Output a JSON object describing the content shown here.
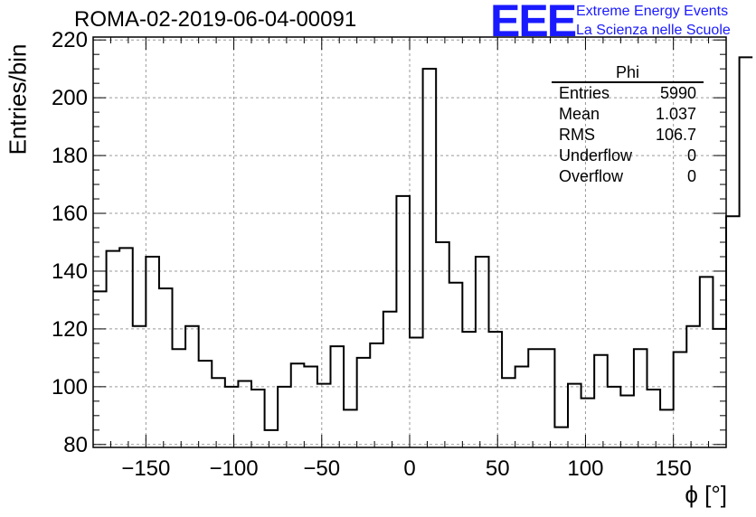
{
  "title": "ROMA-02-2019-06-04-00091",
  "logo": {
    "mark": "EEE",
    "line1": "Extreme Energy Events",
    "line2": "La Scienza nelle Scuole",
    "color": "#1a1aff"
  },
  "stats": {
    "name": "Phi",
    "rows": [
      {
        "label": "Entries",
        "value": "5990"
      },
      {
        "label": "Mean",
        "value": "1.037"
      },
      {
        "label": "RMS",
        "value": "106.7"
      },
      {
        "label": "Underflow",
        "value": "0"
      },
      {
        "label": "Overflow",
        "value": "0"
      }
    ]
  },
  "chart_data": {
    "type": "bar",
    "histogram": true,
    "xlabel": "ϕ [°]",
    "ylabel": "Entries/bin",
    "xlim": [
      -180,
      180
    ],
    "ylim": [
      79,
      221
    ],
    "xticks": [
      -150,
      -100,
      -50,
      0,
      50,
      100,
      150
    ],
    "yticks": [
      80,
      100,
      120,
      140,
      160,
      180,
      200,
      220
    ],
    "grid": true,
    "bin_width": 7.5,
    "bin_edges_start": -180,
    "values": [
      133,
      147,
      148,
      121,
      145,
      134,
      113,
      121,
      109,
      103,
      100,
      102,
      99,
      85,
      100,
      108,
      107,
      101,
      114,
      92,
      110,
      115,
      126,
      166,
      117,
      210,
      150,
      136,
      119,
      145,
      119,
      103,
      107,
      113,
      113,
      86,
      101,
      96,
      111,
      100,
      97,
      113,
      99,
      92,
      112,
      121,
      138,
      120,
      159,
      214
    ]
  }
}
